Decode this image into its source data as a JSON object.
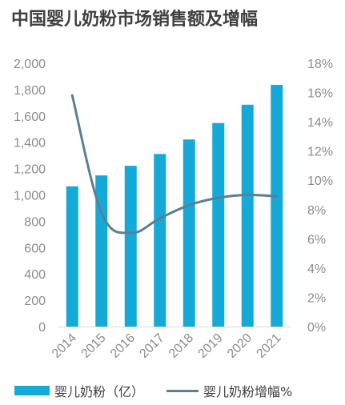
{
  "title": "中国婴儿奶粉市场销售额及增幅",
  "colors": {
    "bar": "#14AAD8",
    "line": "#5A7F96",
    "axis": "#D9D9D9",
    "tick": "#8C8C8C"
  },
  "legend": {
    "bar_label": "婴儿奶粉（亿）",
    "line_label": "婴儿奶粉增幅%"
  },
  "chart_data": {
    "type": "bar",
    "title": "中国婴儿奶粉市场销售额及增幅",
    "xlabel": "",
    "ylabel": "",
    "categories": [
      "2014",
      "2015",
      "2016",
      "2017",
      "2018",
      "2019",
      "2020",
      "2021"
    ],
    "series": [
      {
        "name": "婴儿奶粉（亿）",
        "type": "bar",
        "axis": "left",
        "values": [
          1065,
          1148,
          1221,
          1311,
          1421,
          1546,
          1685,
          1836
        ]
      },
      {
        "name": "婴儿奶粉增幅%",
        "type": "line",
        "axis": "right",
        "values": [
          15.8,
          7.8,
          6.4,
          7.4,
          8.3,
          8.8,
          9.0,
          8.9
        ]
      }
    ],
    "ylim_left": [
      0,
      2000
    ],
    "yticks_left": [
      "0",
      "200",
      "400",
      "600",
      "800",
      "1,000",
      "1,200",
      "1,400",
      "1,600",
      "1,800",
      "2,000"
    ],
    "ylim_right": [
      0,
      18
    ],
    "yticks_right": [
      "0%",
      "2%",
      "4%",
      "6%",
      "8%",
      "10%",
      "12%",
      "14%",
      "16%",
      "18%"
    ],
    "grid": false,
    "legend_position": "bottom"
  }
}
